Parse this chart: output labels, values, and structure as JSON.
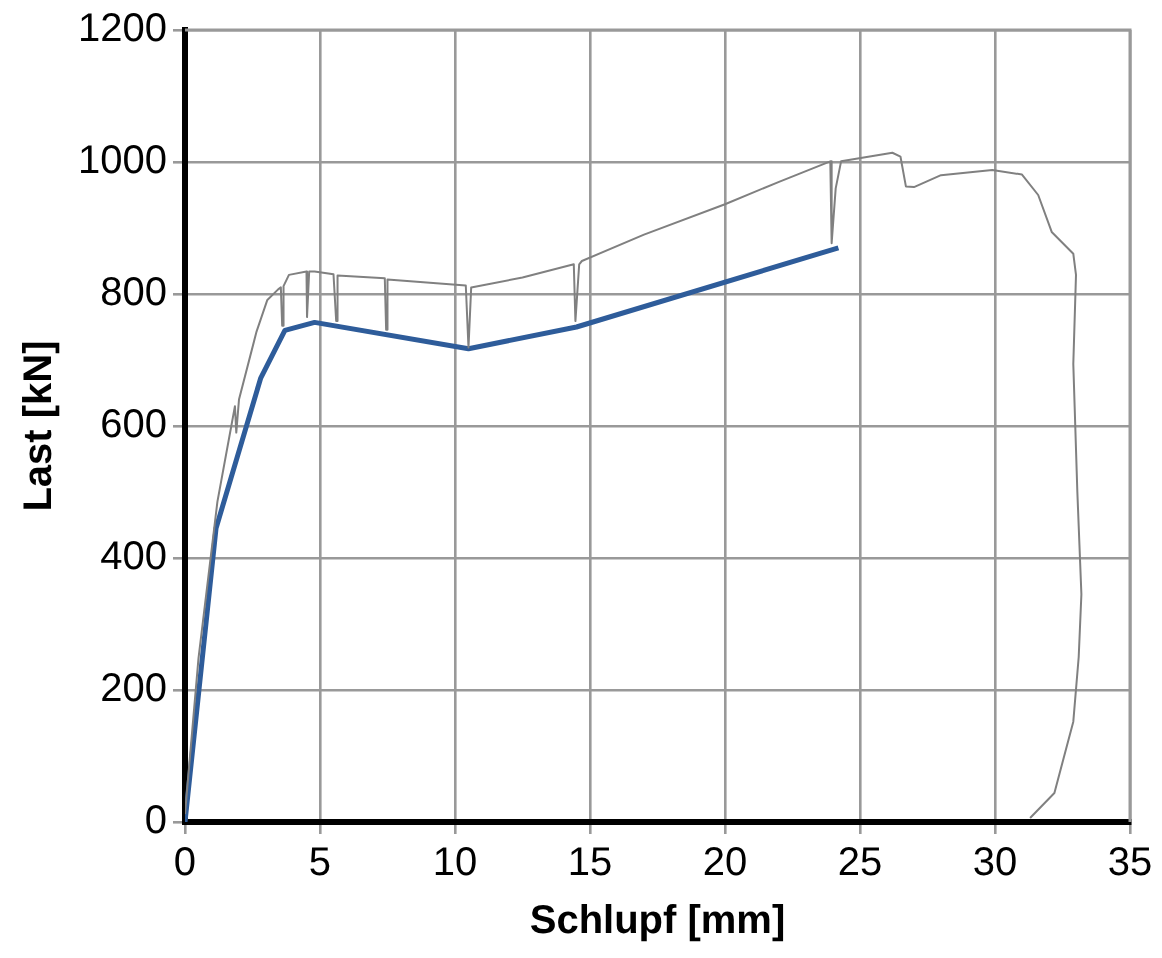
{
  "chart_data": {
    "type": "line",
    "xlabel": "Schlupf [mm]",
    "ylabel": "Last [kN]",
    "xlim": [
      0,
      35
    ],
    "xticks": [
      0,
      5,
      10,
      15,
      20,
      25,
      30,
      35
    ],
    "ylim": [
      0,
      1200
    ],
    "yticks": [
      0,
      200,
      400,
      600,
      800,
      1000,
      1200
    ],
    "grid": true,
    "legend": false,
    "marker": "none",
    "line_style": "solid",
    "series": [
      {
        "color": "#808080",
        "x": [
          0,
          0.5,
          1.2,
          1.85,
          1.9,
          2.0,
          2.65,
          3.05,
          3.45,
          3.55,
          3.6,
          3.65,
          3.85,
          4.5,
          4.52,
          4.6,
          4.8,
          5.5,
          5.6,
          5.65,
          7.4,
          7.45,
          7.5,
          10.4,
          10.5,
          10.6,
          12.5,
          14.4,
          14.46,
          14.6,
          14.7,
          17,
          20,
          22,
          23.9,
          23.95,
          24.1,
          24.3,
          26.2,
          26.5,
          26.7,
          27,
          28,
          29.9,
          31,
          31.6,
          32.1,
          32.9,
          33.0,
          32.9,
          33.05,
          33.2,
          33.1,
          32.9,
          32.2,
          31.3
        ],
        "values": [
          12,
          248,
          485,
          630,
          590,
          640,
          743,
          791,
          807,
          810,
          752,
          812,
          829,
          834,
          765,
          834,
          834,
          830,
          759,
          828,
          824,
          746,
          822,
          813,
          719,
          810,
          825,
          845,
          759,
          845,
          850,
          890,
          936,
          970,
          1001,
          877,
          960,
          1001,
          1014,
          1008,
          963,
          962,
          980,
          988,
          981,
          950,
          894,
          861,
          829,
          694,
          500,
          345,
          250,
          152,
          44,
          6
        ]
      },
      {
        "color": "#2e5c9a",
        "x": [
          0,
          1.15,
          2.8,
          3.7,
          4.8,
          10.5,
          14.5,
          24.2
        ],
        "values": [
          0,
          445,
          672,
          745,
          757,
          717,
          750,
          870
        ]
      }
    ]
  }
}
